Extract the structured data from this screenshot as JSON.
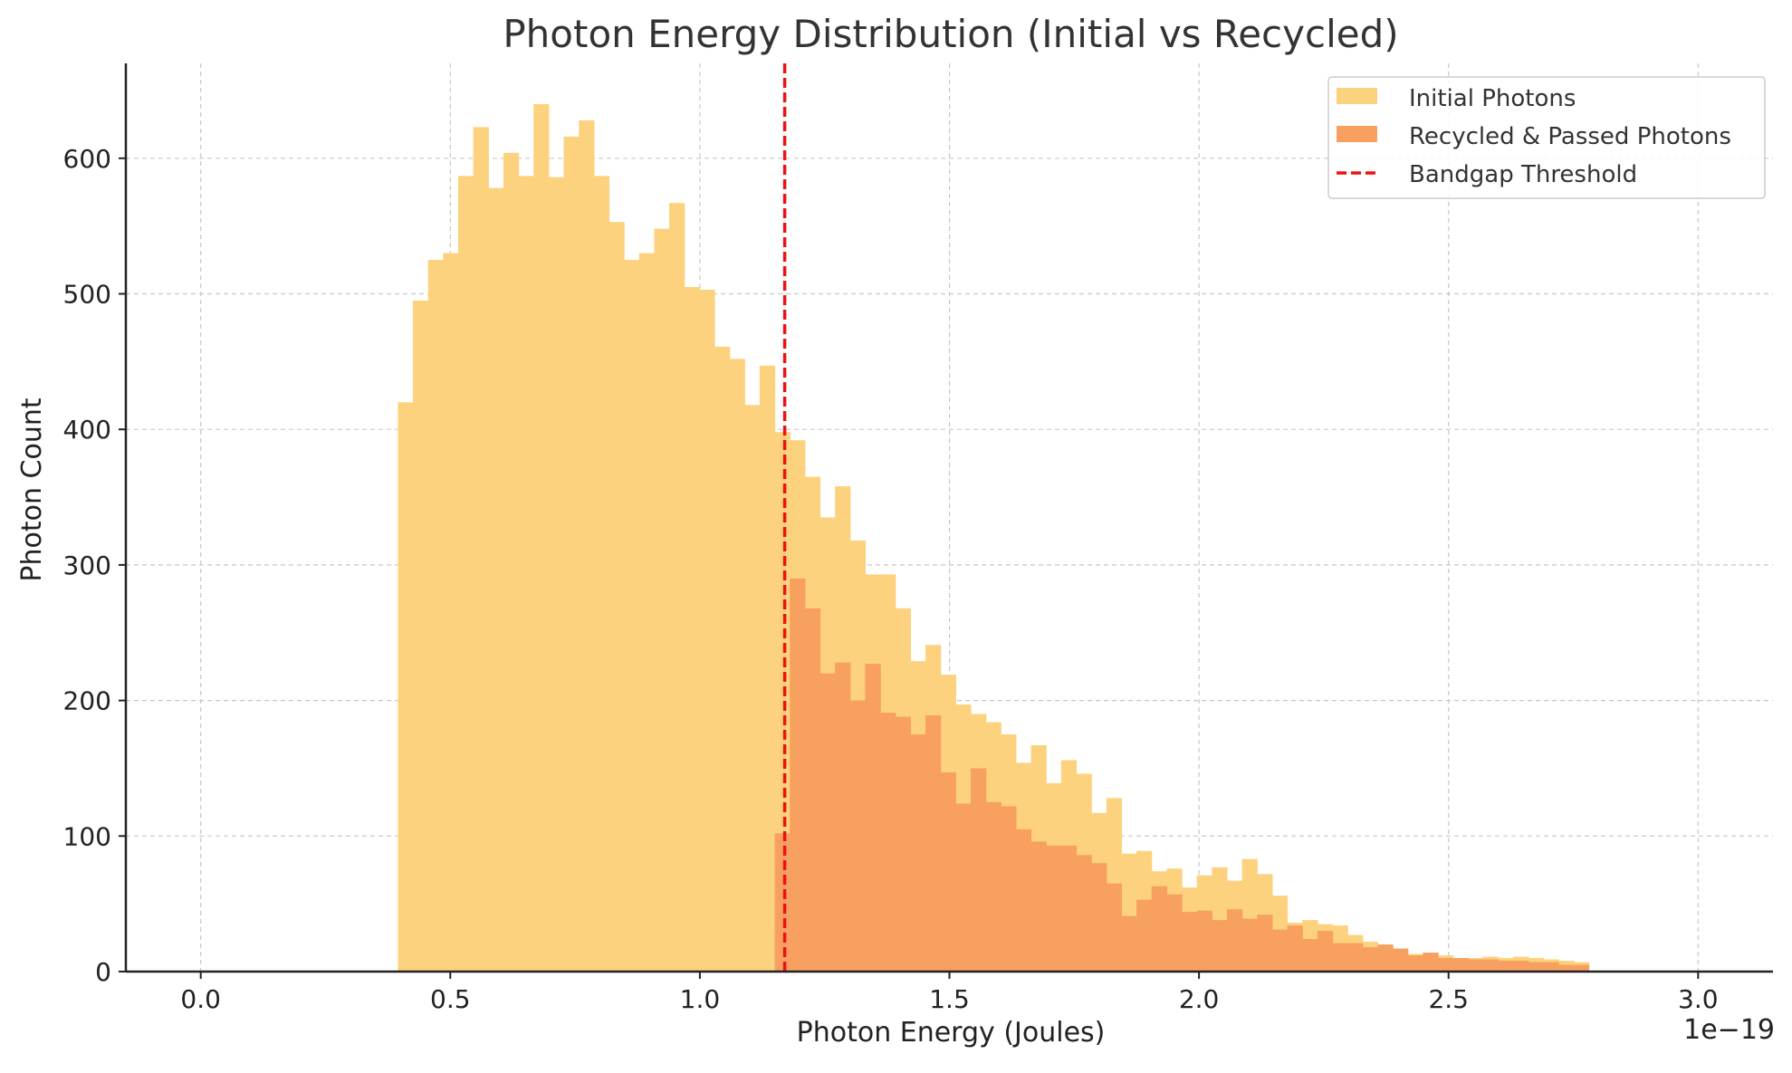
{
  "chart_data": {
    "type": "bar",
    "title": "Photon Energy Distribution (Initial vs Recycled)",
    "xlabel": "Photon Energy (Joules)",
    "ylabel": "Photon Count",
    "x_scale_label": "1e−19",
    "x_scale": 1e-19,
    "xlim": [
      -0.15,
      3.15
    ],
    "ylim": [
      0,
      670
    ],
    "x_ticks": [
      0.0,
      0.5,
      1.0,
      1.5,
      2.0,
      2.5,
      3.0
    ],
    "x_tick_labels": [
      "0.0",
      "0.5",
      "1.0",
      "1.5",
      "2.0",
      "2.5",
      "3.0"
    ],
    "y_ticks": [
      0,
      100,
      200,
      300,
      400,
      500,
      600
    ],
    "y_tick_labels": [
      "0",
      "100",
      "200",
      "300",
      "400",
      "500",
      "600"
    ],
    "grid": true,
    "legend_placement": "top-right",
    "bin_start": 0.395,
    "bin_width": 0.0302,
    "series": [
      {
        "name": "Initial Photons",
        "color": "#fdd27e",
        "start_bin": 0,
        "values": [
          420,
          495,
          525,
          530,
          587,
          623,
          578,
          604,
          587,
          640,
          586,
          616,
          628,
          587,
          553,
          525,
          530,
          548,
          567,
          505,
          503,
          461,
          452,
          418,
          447,
          398,
          392,
          365,
          335,
          358,
          318,
          293,
          293,
          268,
          229,
          241,
          219,
          197,
          190,
          184,
          175,
          154,
          167,
          139,
          156,
          146,
          117,
          128,
          87,
          89,
          74,
          76,
          62,
          71,
          77,
          67,
          83,
          72,
          56,
          36,
          38,
          35,
          34,
          27,
          22,
          16,
          16,
          13,
          13,
          12,
          10,
          10,
          11,
          10,
          11,
          10,
          9,
          8,
          7
        ]
      },
      {
        "name": "Recycled & Passed Photons",
        "color": "#f8a060",
        "start_bin": 25,
        "values": [
          102,
          290,
          268,
          220,
          228,
          200,
          227,
          191,
          188,
          175,
          189,
          147,
          124,
          150,
          125,
          122,
          105,
          96,
          93,
          93,
          86,
          80,
          65,
          41,
          53,
          63,
          57,
          44,
          45,
          38,
          46,
          39,
          42,
          31,
          34,
          24,
          30,
          21,
          21,
          18,
          20,
          17,
          12,
          14,
          10,
          10,
          9,
          9,
          8,
          8,
          7,
          7,
          5,
          5
        ]
      }
    ],
    "threshold": {
      "name": "Bandgap Threshold",
      "x": 1.17,
      "color": "#ee1111"
    }
  }
}
